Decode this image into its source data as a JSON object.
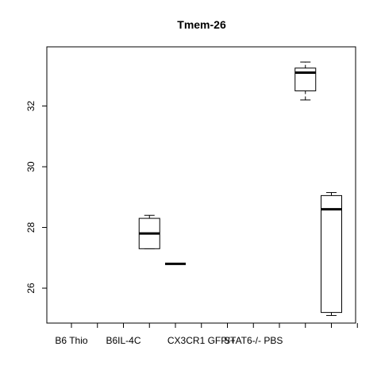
{
  "chart_data": {
    "type": "boxplot",
    "title": "Tmem-26",
    "xlabel": "",
    "ylabel": "",
    "ylim": [
      24.85,
      33.95
    ],
    "y_ticks": [
      26,
      28,
      30,
      32
    ],
    "categories": [
      "B6 Thio",
      "",
      "B6IL-4C",
      "",
      "",
      "CX3CR1 GFP/+",
      "",
      "STAT6-/- PBS",
      "",
      "",
      "",
      ""
    ],
    "x_tick_labels_shown": [
      "B6 Thio",
      "B6IL-4C",
      "CX3CR1 GFP/+",
      "STAT6-/- PBS"
    ],
    "boxes": [
      {
        "position": 4,
        "min": 27.3,
        "q1": 27.3,
        "median": 27.8,
        "q3": 28.3,
        "max": 28.4
      },
      {
        "position": 5,
        "min": 26.8,
        "q1": 26.8,
        "median": 26.8,
        "q3": 26.8,
        "max": 26.8
      },
      {
        "position": 10,
        "min": 32.2,
        "q1": 32.5,
        "median": 33.1,
        "q3": 33.25,
        "max": 33.45
      },
      {
        "position": 11,
        "min": 25.1,
        "q1": 25.2,
        "median": 28.6,
        "q3": 29.05,
        "max": 29.15
      }
    ],
    "grid": false,
    "legend": "none"
  }
}
